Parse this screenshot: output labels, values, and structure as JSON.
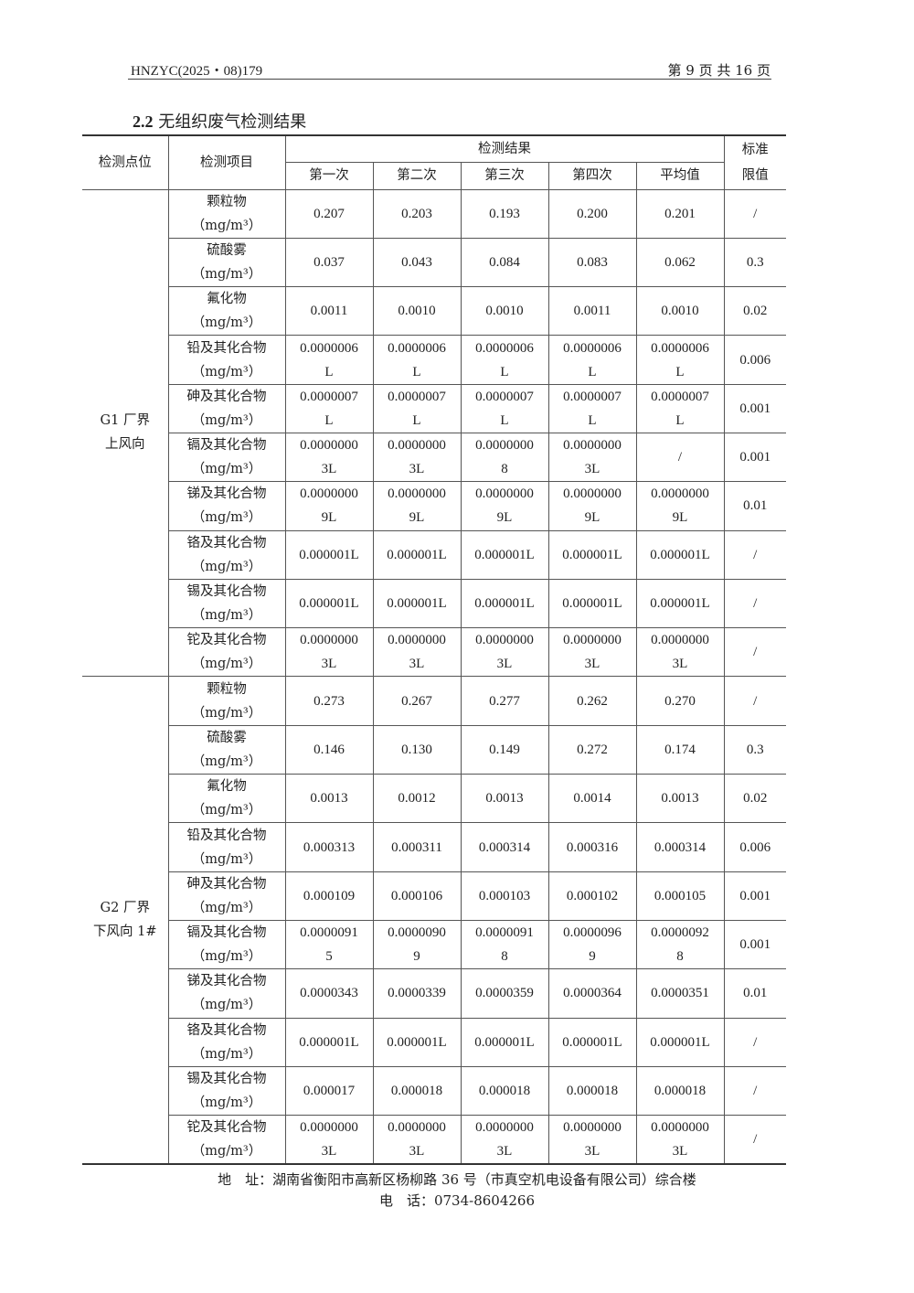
{
  "header": {
    "report_no": "HNZYC(2025・08)179",
    "page": "第 9 页 共 16 页"
  },
  "section": {
    "number": "2.2",
    "title": "无组织废气检测结果"
  },
  "table": {
    "col_point": "检测点位",
    "col_item": "检测项目",
    "col_results": "检测结果",
    "col_limit": "标准\n限值",
    "sub_cols": [
      "第一次",
      "第二次",
      "第三次",
      "第四次",
      "平均值"
    ],
    "groups": [
      {
        "point": "G1 厂界\n上风向",
        "rows": [
          [
            "颗粒物\n（mg/m³）",
            "0.207",
            "0.203",
            "0.193",
            "0.200",
            "0.201",
            "/"
          ],
          [
            "硫酸雾\n（mg/m³）",
            "0.037",
            "0.043",
            "0.084",
            "0.083",
            "0.062",
            "0.3"
          ],
          [
            "氟化物\n（mg/m³）",
            "0.0011",
            "0.0010",
            "0.0010",
            "0.0011",
            "0.0010",
            "0.02"
          ],
          [
            "铅及其化合物\n（mg/m³）",
            "0.0000006\nL",
            "0.0000006\nL",
            "0.0000006\nL",
            "0.0000006\nL",
            "0.0000006\nL",
            "0.006"
          ],
          [
            "砷及其化合物\n（mg/m³）",
            "0.0000007\nL",
            "0.0000007\nL",
            "0.0000007\nL",
            "0.0000007\nL",
            "0.0000007\nL",
            "0.001"
          ],
          [
            "镉及其化合物\n（mg/m³）",
            "0.0000000\n3L",
            "0.0000000\n3L",
            "0.0000000\n8",
            "0.0000000\n3L",
            "/",
            "0.001"
          ],
          [
            "锑及其化合物\n（mg/m³）",
            "0.0000000\n9L",
            "0.0000000\n9L",
            "0.0000000\n9L",
            "0.0000000\n9L",
            "0.0000000\n9L",
            "0.01"
          ],
          [
            "铬及其化合物\n（mg/m³）",
            "0.000001L",
            "0.000001L",
            "0.000001L",
            "0.000001L",
            "0.000001L",
            "/"
          ],
          [
            "锡及其化合物\n（mg/m³）",
            "0.000001L",
            "0.000001L",
            "0.000001L",
            "0.000001L",
            "0.000001L",
            "/"
          ],
          [
            "铊及其化合物\n（mg/m³）",
            "0.0000000\n3L",
            "0.0000000\n3L",
            "0.0000000\n3L",
            "0.0000000\n3L",
            "0.0000000\n3L",
            "/"
          ]
        ]
      },
      {
        "point": "G2 厂界\n下风向 1#",
        "rows": [
          [
            "颗粒物\n（mg/m³）",
            "0.273",
            "0.267",
            "0.277",
            "0.262",
            "0.270",
            "/"
          ],
          [
            "硫酸雾\n（mg/m³）",
            "0.146",
            "0.130",
            "0.149",
            "0.272",
            "0.174",
            "0.3"
          ],
          [
            "氟化物\n（mg/m³）",
            "0.0013",
            "0.0012",
            "0.0013",
            "0.0014",
            "0.0013",
            "0.02"
          ],
          [
            "铅及其化合物\n（mg/m³）",
            "0.000313",
            "0.000311",
            "0.000314",
            "0.000316",
            "0.000314",
            "0.006"
          ],
          [
            "砷及其化合物\n（mg/m³）",
            "0.000109",
            "0.000106",
            "0.000103",
            "0.000102",
            "0.000105",
            "0.001"
          ],
          [
            "镉及其化合物\n（mg/m³）",
            "0.0000091\n5",
            "0.0000090\n9",
            "0.0000091\n8",
            "0.0000096\n9",
            "0.0000092\n8",
            "0.001"
          ],
          [
            "锑及其化合物\n（mg/m³）",
            "0.0000343",
            "0.0000339",
            "0.0000359",
            "0.0000364",
            "0.0000351",
            "0.01"
          ],
          [
            "铬及其化合物\n（mg/m³）",
            "0.000001L",
            "0.000001L",
            "0.000001L",
            "0.000001L",
            "0.000001L",
            "/"
          ],
          [
            "锡及其化合物\n（mg/m³）",
            "0.000017",
            "0.000018",
            "0.000018",
            "0.000018",
            "0.000018",
            "/"
          ],
          [
            "铊及其化合物\n（mg/m³）",
            "0.0000000\n3L",
            "0.0000000\n3L",
            "0.0000000\n3L",
            "0.0000000\n3L",
            "0.0000000\n3L",
            "/"
          ]
        ]
      }
    ]
  },
  "footer": {
    "address": "地　址：湖南省衡阳市高新区杨柳路 36 号（市真空机电设备有限公司）综合楼",
    "phone": "电　话：0734-8604266"
  }
}
